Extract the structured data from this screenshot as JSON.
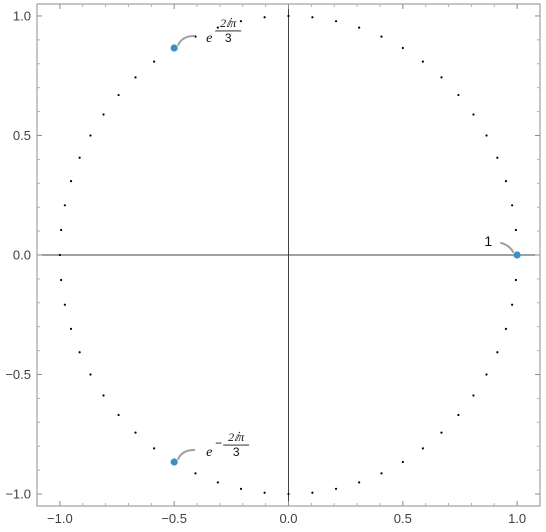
{
  "chart_data": {
    "type": "scatter",
    "title": "",
    "xlabel": "",
    "ylabel": "",
    "xlim": [
      -1.1,
      1.1
    ],
    "ylim": [
      -1.05,
      1.05
    ],
    "x_ticks": [
      -1.0,
      -0.5,
      0.0,
      0.5,
      1.0
    ],
    "x_tick_labels": [
      "−1.0",
      "−0.5",
      "0.0",
      "0.5",
      "1.0"
    ],
    "y_ticks": [
      -1.0,
      -0.5,
      0.0,
      0.5,
      1.0
    ],
    "y_tick_labels": [
      "−1.0",
      "−0.5",
      "0.0",
      "0.5",
      "1.0"
    ],
    "grid": false,
    "frame": true,
    "axes_lines_at_origin": true,
    "circle_dots": {
      "radius": 1.0,
      "count": 60,
      "color": "#000000"
    },
    "roots": [
      {
        "x": 1.0,
        "y": 0.0,
        "label": "1",
        "kind": "plain"
      },
      {
        "x": -0.5,
        "y": 0.866,
        "label_base": "e",
        "label_sign": "",
        "label_num": "2ⅈπ",
        "label_den": "3",
        "kind": "exp"
      },
      {
        "x": -0.5,
        "y": -0.866,
        "label_base": "e",
        "label_sign": "−",
        "label_num": "2ⅈπ",
        "label_den": "3",
        "kind": "exp"
      }
    ],
    "point_color": "#3a8fc7",
    "callout_color": "#a0a0a0"
  }
}
